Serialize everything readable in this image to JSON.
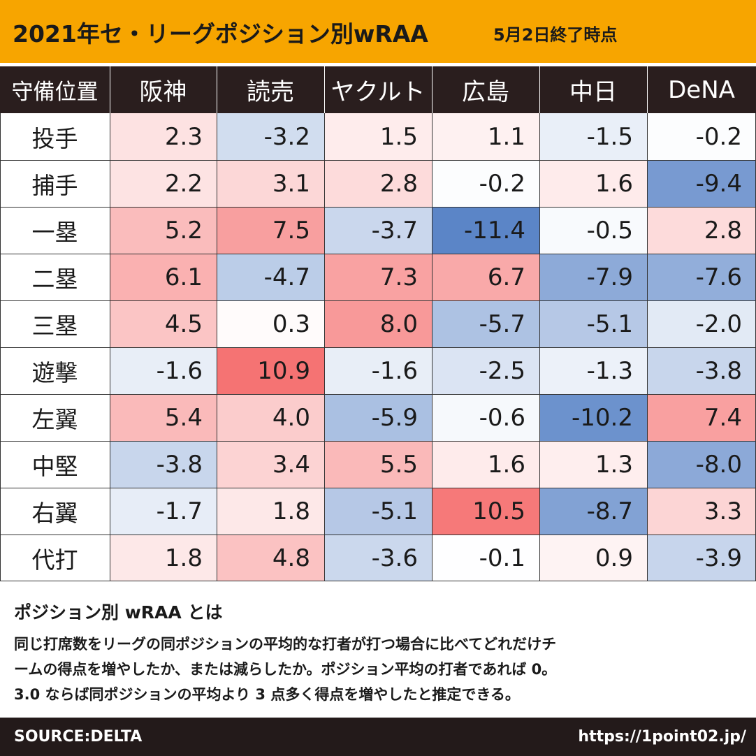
{
  "header": {
    "title": "2021年セ・リーグポジション別wRAA",
    "subtitle": "5月2日終了時点"
  },
  "chart_data": {
    "type": "heatmap",
    "corner_label": "守備位置",
    "columns": [
      "阪神",
      "読売",
      "ヤクルト",
      "広島",
      "中日",
      "DeNA"
    ],
    "rows": [
      "投手",
      "捕手",
      "一塁",
      "二塁",
      "三塁",
      "遊撃",
      "左翼",
      "中堅",
      "右翼",
      "代打"
    ],
    "values": [
      [
        "2.3",
        "-3.2",
        "1.5",
        "1.1",
        "-1.5",
        "-0.2"
      ],
      [
        "2.2",
        "3.1",
        "2.8",
        "-0.2",
        "1.6",
        "-9.4"
      ],
      [
        "5.2",
        "7.5",
        "-3.7",
        "-11.4",
        "-0.5",
        "2.8"
      ],
      [
        "6.1",
        "-4.7",
        "7.3",
        "6.7",
        "-7.9",
        "-7.6"
      ],
      [
        "4.5",
        "0.3",
        "8.0",
        "-5.7",
        "-5.1",
        "-2.0"
      ],
      [
        "-1.6",
        "10.9",
        "-1.6",
        "-2.5",
        "-1.3",
        "-3.8"
      ],
      [
        "5.4",
        "4.0",
        "-5.9",
        "-0.6",
        "-10.2",
        "7.4"
      ],
      [
        "-3.8",
        "3.4",
        "5.5",
        "1.6",
        "1.3",
        "-8.0"
      ],
      [
        "-1.7",
        "1.8",
        "-5.1",
        "10.5",
        "-8.7",
        "3.3"
      ],
      [
        "1.8",
        "4.8",
        "-3.6",
        "-0.1",
        "0.9",
        "-3.9"
      ]
    ],
    "color_scale": {
      "negative": "#5b85c7",
      "neutral": "#ffffff",
      "positive": "#f56d6d",
      "max_abs": 11.4
    }
  },
  "definition": {
    "heading": "ポジション別 wRAA とは",
    "lines": [
      "同じ打席数をリーグの同ポジションの平均的な打者が打つ場合に比べてどれだけチ",
      "ームの得点を増やしたか、または減らしたか。ポジション平均の打者であれば 0。",
      "3.0 ならば同ポジションの平均より 3 点多く得点を増やしたと推定できる。"
    ]
  },
  "footer": {
    "source": "SOURCE:DELTA",
    "url": "https://1point02.jp/"
  },
  "colors": {
    "title_bg": "#f7a500",
    "header_bg": "#2a1e1e",
    "footer_bg": "#231a1a"
  }
}
